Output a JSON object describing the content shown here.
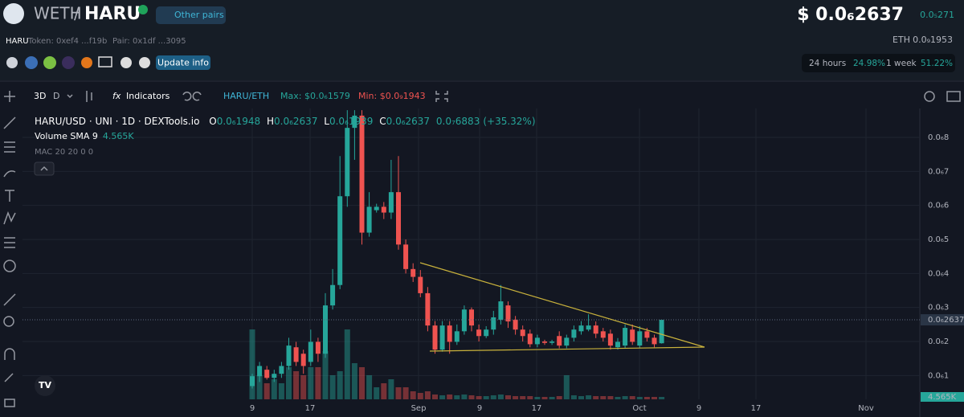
{
  "header": {
    "base": "WETH",
    "separator": "/",
    "quote": "HARU",
    "other_pairs": "Other pairs",
    "price": "$ 0.0₆2637",
    "price_change": "0.0₅271",
    "symbol": "HARU",
    "token": "Token: 0xef4 ...f19b",
    "pair": "Pair: 0x1df ...3095",
    "eth_label": "ETH",
    "eth_price": "0.0₉1953",
    "update_info": "Update info",
    "stats": [
      {
        "label": "24 hours",
        "value": "24.98%"
      },
      {
        "label": "1 week",
        "value": "51.22%"
      }
    ]
  },
  "toolbar": {
    "range": "3D",
    "interval": "D",
    "indicators": "Indicators",
    "pair": "HARU/ETH",
    "max": "Max: $0.0₆1579",
    "min": "Min: $0.0₉1943"
  },
  "legend": {
    "title": "HARU/USD · UNI · 1D · DEXTools.io",
    "ohlc": [
      {
        "key": "O",
        "value": "0.0₆1948"
      },
      {
        "key": "H",
        "value": "0.0₆2637"
      },
      {
        "key": "L",
        "value": "0.0₆1939"
      },
      {
        "key": "C",
        "value": "0.0₆2637"
      }
    ],
    "change": "0.0₇6883",
    "change_pct": "(+35.32%)",
    "volume": "Volume SMA 9",
    "volume_value": "4.565K",
    "mac": "MAC 20 20 0 0"
  },
  "chart_data": {
    "type": "candlestick",
    "up_color": "#26a69a",
    "down_color": "#ef5350",
    "grid": true,
    "ylim": [
      3e-08,
      8.85e-07
    ],
    "yticks": [
      {
        "value": 1e-07,
        "label": "0.0₆1"
      },
      {
        "value": 2e-07,
        "label": "0.0₆2"
      },
      {
        "value": 3e-07,
        "label": "0.0₆3"
      },
      {
        "value": 4e-07,
        "label": "0.0₆4"
      },
      {
        "value": 5e-07,
        "label": "0.0₆5"
      },
      {
        "value": 6e-07,
        "label": "0.0₆6"
      },
      {
        "value": 7e-07,
        "label": "0.0₆7"
      },
      {
        "value": 8e-07,
        "label": "0.0₆8"
      }
    ],
    "xtick_labels": [
      "9",
      "17",
      "Sep",
      "9",
      "17",
      "Oct",
      "9",
      "17",
      "Nov"
    ],
    "last_price_label": "0.0₆2637",
    "last_volume_label": "4.565K",
    "open": [
      6.9e-08,
      9.8e-08,
      1.17e-07,
      9.3e-08,
      1.05e-07,
      1.28e-07,
      1.83e-07,
      1.64e-07,
      1.4e-07,
      1.99e-07,
      1.64e-07,
      3.06e-07,
      3.66e-07,
      6.27e-07,
      8.28e-07,
      8.64e-07,
      5.2e-07,
      5.86e-07,
      5.96e-07,
      5.79e-07,
      6.39e-07,
      4.85e-07,
      4.13e-07,
      3.9e-07,
      3.42e-07,
      2.47e-07,
      1.76e-07,
      2.47e-07,
      1.99e-07,
      2.3e-07,
      2.94e-07,
      2.35e-07,
      2.16e-07,
      2.35e-07,
      2.64e-07,
      3.06e-07,
      2.64e-07,
      2.35e-07,
      2.23e-07,
      1.92e-07,
      2e-07,
      1.96e-07,
      2.16e-07,
      1.88e-07,
      2.11e-07,
      2.3e-07,
      2.35e-07,
      2.47e-07,
      2.3e-07,
      2.23e-07,
      1.83e-07,
      1.88e-07,
      2.35e-07,
      1.88e-07,
      2.3e-07,
      2.11e-07,
      1.948e-07
    ],
    "high": [
      1.05e-07,
      1.4e-07,
      1.28e-07,
      1.17e-07,
      1.4e-07,
      2.11e-07,
      1.99e-07,
      1.76e-07,
      2.35e-07,
      2.11e-07,
      3.42e-07,
      4.13e-07,
      7.45e-07,
      8.8e-07,
      8.8e-07,
      8.8e-07,
      6.39e-07,
      6.05e-07,
      6.1e-07,
      7.34e-07,
      7.45e-07,
      5e-07,
      4.3e-07,
      4.1e-07,
      3.6e-07,
      2.6e-07,
      2.6e-07,
      2.6e-07,
      2.5e-07,
      3.06e-07,
      3e-07,
      2.5e-07,
      2.45e-07,
      2.9e-07,
      3.66e-07,
      3.18e-07,
      2.75e-07,
      2.47e-07,
      2.35e-07,
      2.2e-07,
      2.05e-07,
      2.05e-07,
      2.3e-07,
      2.2e-07,
      2.47e-07,
      2.6e-07,
      2.8e-07,
      2.59e-07,
      2.4e-07,
      2.35e-07,
      2.1e-07,
      2.5e-07,
      2.5e-07,
      2.45e-07,
      2.4e-07,
      2.2e-07,
      2.637e-07
    ],
    "low": [
      6.2e-08,
      8.1e-08,
      8.8e-08,
      8.1e-08,
      9.3e-08,
      1.17e-07,
      1.28e-07,
      1.05e-07,
      1.28e-07,
      1.4e-07,
      1.52e-07,
      2.94e-07,
      3.54e-07,
      5.96e-07,
      7.34e-07,
      4.85e-07,
      5.08e-07,
      5.79e-07,
      5.6e-07,
      5.6e-07,
      4.7e-07,
      4e-07,
      3.75e-07,
      3.3e-07,
      2.3e-07,
      1.64e-07,
      1.7e-07,
      1.64e-07,
      1.9e-07,
      2.2e-07,
      2.3e-07,
      2e-07,
      2.1e-07,
      2.2e-07,
      2.5e-07,
      2.4e-07,
      2.2e-07,
      2e-07,
      1.83e-07,
      1.83e-07,
      1.9e-07,
      1.9e-07,
      1.8e-07,
      1.8e-07,
      2e-07,
      2.2e-07,
      2.3e-07,
      2.1e-07,
      2e-07,
      1.76e-07,
      1.76e-07,
      1.8e-07,
      1.9e-07,
      1.8e-07,
      2e-07,
      1.83e-07,
      1.939e-07
    ],
    "close": [
      9.8e-08,
      1.28e-07,
      9.3e-08,
      1.05e-07,
      1.28e-07,
      1.88e-07,
      1.4e-07,
      1.28e-07,
      1.99e-07,
      1.64e-07,
      3.06e-07,
      3.66e-07,
      6.27e-07,
      8.28e-07,
      8.64e-07,
      5.2e-07,
      5.96e-07,
      5.96e-07,
      5.79e-07,
      6.39e-07,
      4.85e-07,
      4.13e-07,
      3.9e-07,
      3.42e-07,
      2.47e-07,
      1.76e-07,
      2.47e-07,
      1.99e-07,
      2.3e-07,
      2.94e-07,
      2.47e-07,
      2.16e-07,
      2.35e-07,
      2.71e-07,
      3.18e-07,
      2.59e-07,
      2.35e-07,
      2.16e-07,
      1.92e-07,
      2.11e-07,
      1.96e-07,
      2e-07,
      1.88e-07,
      2.11e-07,
      2.35e-07,
      2.47e-07,
      2.47e-07,
      2.23e-07,
      2.11e-07,
      1.88e-07,
      1.99e-07,
      2.4e-07,
      1.99e-07,
      2.3e-07,
      2.11e-07,
      1.92e-07,
      2.637e-07
    ],
    "volume": [
      132240,
      45600,
      30400,
      38000,
      30400,
      60800,
      53200,
      45600,
      60800,
      60800,
      91200,
      45600,
      53200,
      132240,
      68400,
      60800,
      45600,
      22800,
      30400,
      38000,
      22800,
      22800,
      15200,
      12160,
      15200,
      9120,
      7600,
      9120,
      7600,
      9120,
      7600,
      6080,
      6080,
      7600,
      9120,
      7600,
      6080,
      6080,
      6080,
      4560,
      4560,
      4560,
      6080,
      45600,
      7600,
      6080,
      7600,
      6080,
      6080,
      6080,
      4560,
      6080,
      6080,
      4560,
      4560,
      4560,
      4565
    ]
  }
}
